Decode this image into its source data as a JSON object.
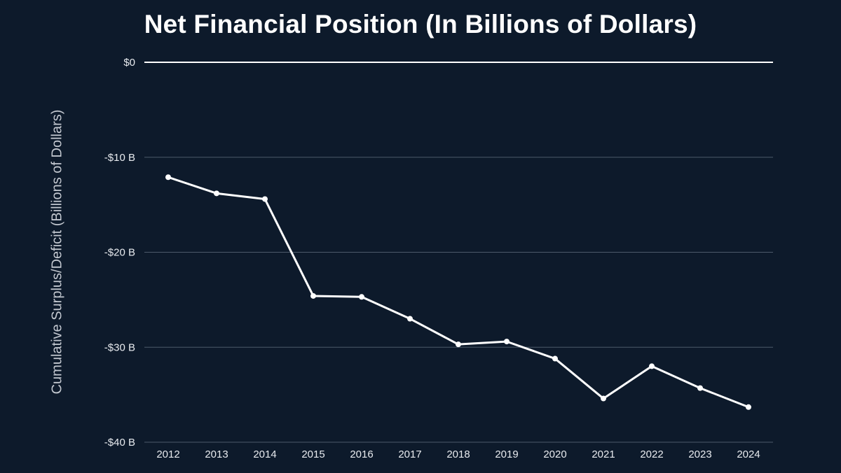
{
  "chart_data": {
    "type": "line",
    "title": "Net Financial Position (In Billions of Dollars)",
    "xlabel": "",
    "ylabel": "Cumulative Surplus/Deficit (Billions of Dollars)",
    "ylim": [
      -40,
      0
    ],
    "y_ticks": [
      {
        "value": 0,
        "label": "$0"
      },
      {
        "value": -10,
        "label": "-$10 B"
      },
      {
        "value": -20,
        "label": "-$20 B"
      },
      {
        "value": -30,
        "label": "-$30 B"
      },
      {
        "value": -40,
        "label": "-$40 B"
      }
    ],
    "categories": [
      "2012",
      "2013",
      "2014",
      "2015",
      "2016",
      "2017",
      "2018",
      "2019",
      "2020",
      "2021",
      "2022",
      "2023",
      "2024"
    ],
    "series": [
      {
        "values": [
          -12.1,
          -13.8,
          -14.4,
          -24.6,
          -24.7,
          -27.0,
          -29.7,
          -29.4,
          -31.2,
          -35.4,
          -32.0,
          -34.3,
          -36.3
        ]
      }
    ],
    "grid": true,
    "legend": "none",
    "colors": {
      "background": "#0d1a2b",
      "line": "#ffffff",
      "zero_line": "#ffffff",
      "grid": "#4d5a6b",
      "text": "#e8ebef"
    }
  }
}
